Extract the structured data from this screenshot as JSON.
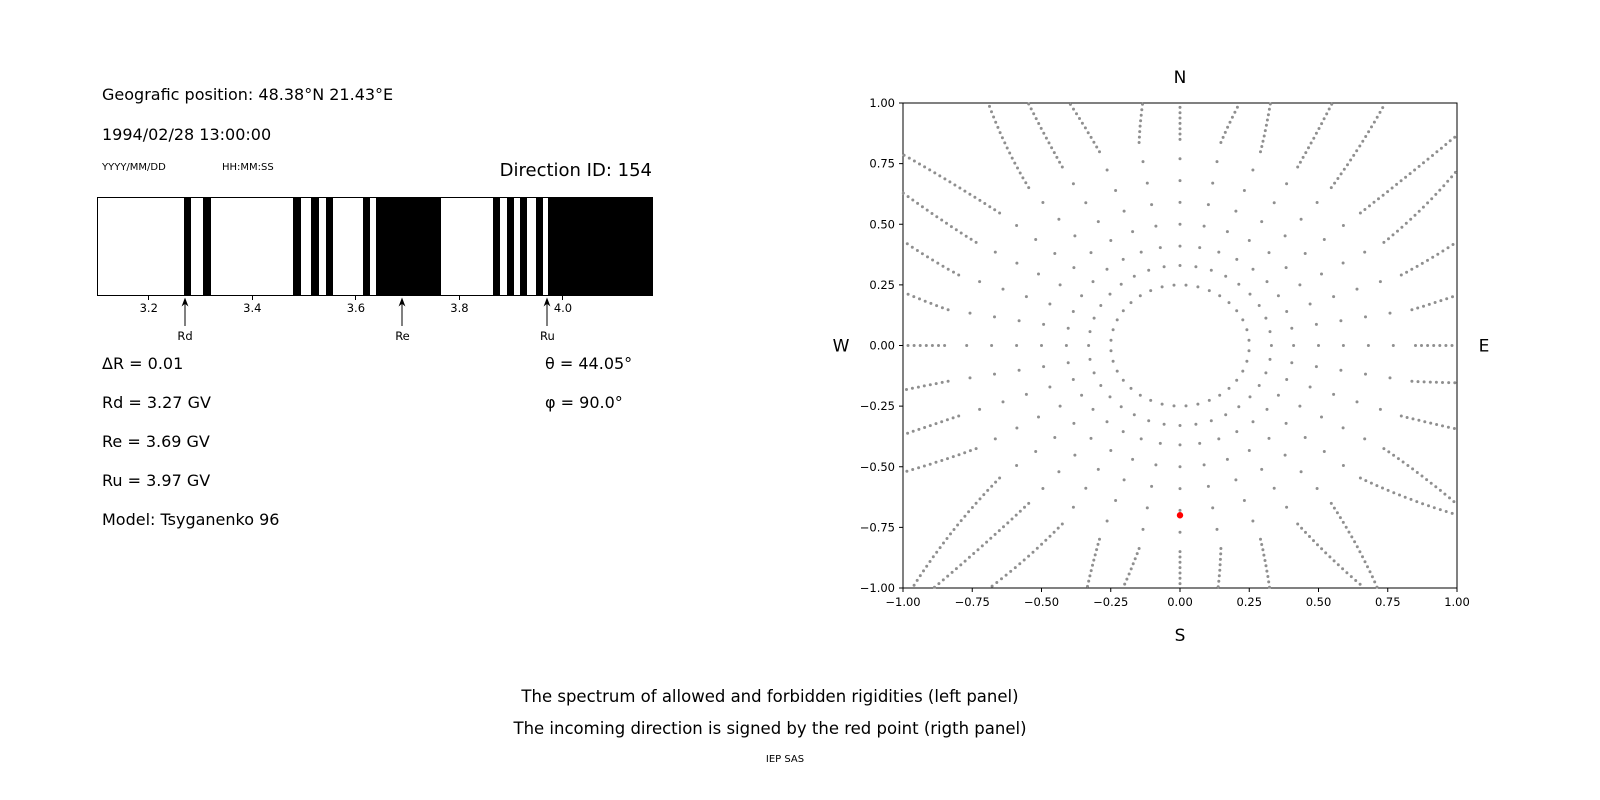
{
  "header": {
    "position": "Geografic position: 48.38°N 21.43°E",
    "datetime": "1994/02/28 13:00:00",
    "date_format": "YYYY/MM/DD",
    "time_format": "HH:MM:SS",
    "direction_id": "Direction ID: 154"
  },
  "parameters": {
    "delta_r": "ΔR = 0.01",
    "rd": "Rd = 3.27 GV",
    "re": "Re = 3.69 GV",
    "ru": "Ru = 3.97 GV",
    "model": "Model: Tsyganenko 96",
    "theta": "θ = 44.05°",
    "phi": "φ = 90.0°"
  },
  "caption": {
    "line1": "The spectrum of allowed and forbidden rigidities (left panel)",
    "line2": "The incoming direction is signed by the red point (rigth panel)",
    "credit": "IEP SAS"
  },
  "chart_data": [
    {
      "type": "bar",
      "description": "Rigidity spectrum: black intervals are bands between lower (Rd), effective (Re) and upper (Ru) cutoff rigidities in GV",
      "xlim": [
        3.1,
        4.17
      ],
      "xticks": [
        3.2,
        3.4,
        3.6,
        3.8,
        4.0
      ],
      "forbidden_bands_gv": [
        [
          3.266,
          3.28
        ],
        [
          3.302,
          3.318
        ],
        [
          3.476,
          3.492
        ],
        [
          3.511,
          3.527
        ],
        [
          3.54,
          3.554
        ],
        [
          3.611,
          3.626
        ],
        [
          3.636,
          3.762
        ],
        [
          3.862,
          3.877
        ],
        [
          3.89,
          3.904
        ],
        [
          3.915,
          3.929
        ],
        [
          3.946,
          3.96
        ],
        [
          3.969,
          4.17
        ]
      ],
      "markers": [
        {
          "label": "Rd",
          "gv": 3.27
        },
        {
          "label": "Re",
          "gv": 3.69
        },
        {
          "label": "Ru",
          "gv": 3.97
        }
      ]
    },
    {
      "type": "scatter",
      "description": "Incoming-direction sky map: gray dots form 36 radial spokes with an inner ring at r=0.25 and dense curved tails toward the frame edges; the red point marks the incoming direction",
      "xlim": [
        -1,
        1
      ],
      "ylim": [
        -1,
        1
      ],
      "xticks": [
        -1.0,
        -0.75,
        -0.5,
        -0.25,
        0.0,
        0.25,
        0.5,
        0.75,
        1.0
      ],
      "yticks": [
        -1.0,
        -0.75,
        -0.5,
        -0.25,
        0.0,
        0.25,
        0.5,
        0.75,
        1.0
      ],
      "compass": {
        "top": "N",
        "bottom": "S",
        "left": "W",
        "right": "E"
      },
      "dots_color": "#8f8f8f",
      "red_point": {
        "x": 0.0,
        "y": -0.7,
        "color": "#ff0000"
      },
      "pattern": {
        "spokes": 36,
        "inner_ring_radius": 0.25,
        "spoke_radii": [
          0.33,
          0.41,
          0.5,
          0.59,
          0.68,
          0.77
        ],
        "tail_start": 0.85,
        "tail_step": 0.022,
        "tail_max": 1.45
      }
    }
  ]
}
